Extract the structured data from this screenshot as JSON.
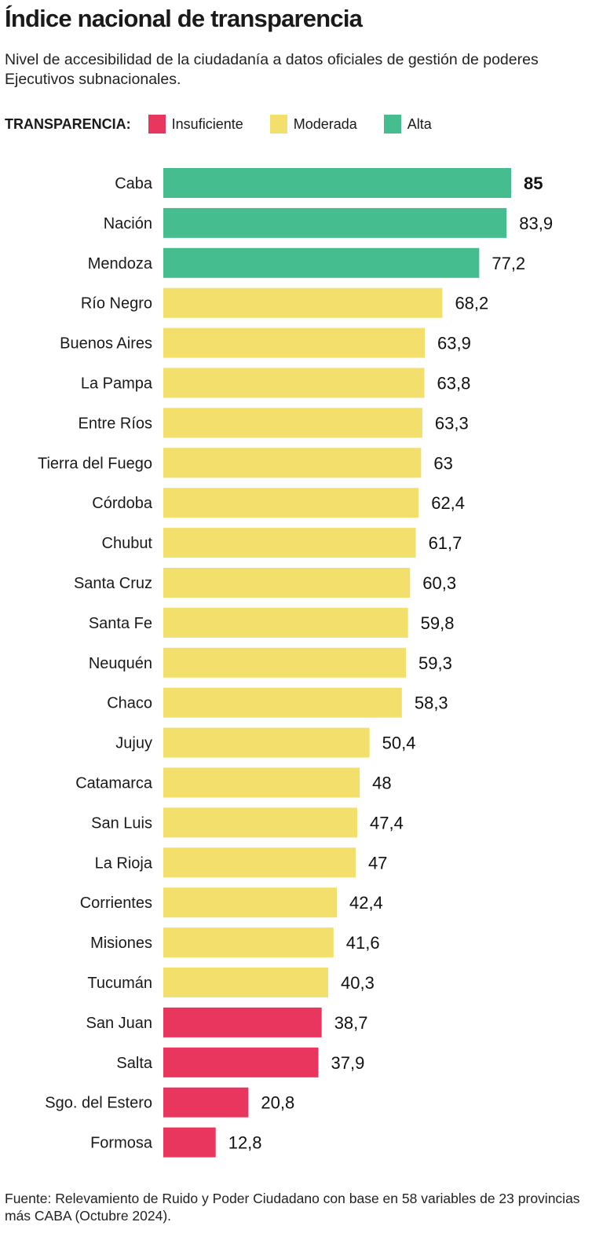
{
  "title": "Índice nacional de transparencia",
  "subtitle": "Nivel de accesibilidad de la ciudadanía a datos oficiales de gestión de poderes Ejecutivos subnacionales.",
  "legend": {
    "label": "TRANSPARENCIA:",
    "items": [
      {
        "label": "Insuficiente",
        "color": "#e8365f"
      },
      {
        "label": "Moderada",
        "color": "#f2df6c"
      },
      {
        "label": "Alta",
        "color": "#45bd8f"
      }
    ]
  },
  "source": "Fuente: Relevamiento de Ruido y Poder Ciudadano con base en 58 variables de 23 provincias más CABA (Octubre 2024).",
  "chart_data": {
    "type": "bar",
    "orientation": "horizontal",
    "title": "Índice nacional de transparencia",
    "xlim": [
      0,
      85
    ],
    "categories": [
      "Caba",
      "Nación",
      "Mendoza",
      "Río Negro",
      "Buenos Aires",
      "La Pampa",
      "Entre Ríos",
      "Tierra del Fuego",
      "Córdoba",
      "Chubut",
      "Santa Cruz",
      "Santa Fe",
      "Neuquén",
      "Chaco",
      "Jujuy",
      "Catamarca",
      "San Luis",
      "La Rioja",
      "Corrientes",
      "Misiones",
      "Tucumán",
      "San Juan",
      "Salta",
      "Sgo. del Estero",
      "Formosa"
    ],
    "values": [
      85,
      83.9,
      77.2,
      68.2,
      63.9,
      63.8,
      63.3,
      63,
      62.4,
      61.7,
      60.3,
      59.8,
      59.3,
      58.3,
      50.4,
      48,
      47.4,
      47,
      42.4,
      41.6,
      40.3,
      38.7,
      37.9,
      20.8,
      12.8
    ],
    "labels": [
      "85",
      "83,9",
      "77,2",
      "68,2",
      "63,9",
      "63,8",
      "63,3",
      "63",
      "62,4",
      "61,7",
      "60,3",
      "59,8",
      "59,3",
      "58,3",
      "50,4",
      "48",
      "47,4",
      "47",
      "42,4",
      "41,6",
      "40,3",
      "38,7",
      "37,9",
      "20,8",
      "12,8"
    ],
    "classes": [
      "Alta",
      "Alta",
      "Alta",
      "Moderada",
      "Moderada",
      "Moderada",
      "Moderada",
      "Moderada",
      "Moderada",
      "Moderada",
      "Moderada",
      "Moderada",
      "Moderada",
      "Moderada",
      "Moderada",
      "Moderada",
      "Moderada",
      "Moderada",
      "Moderada",
      "Moderada",
      "Moderada",
      "Insuficiente",
      "Insuficiente",
      "Insuficiente",
      "Insuficiente"
    ]
  }
}
